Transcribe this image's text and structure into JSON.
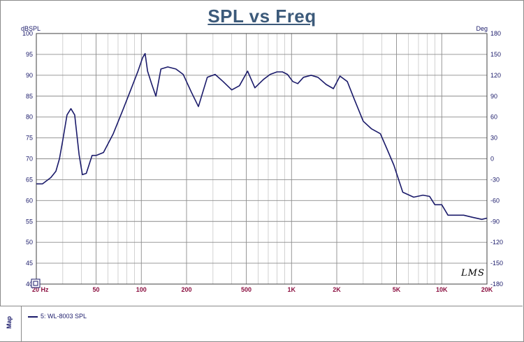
{
  "window": {
    "map_tab_label": "Map",
    "watermark": "LMS"
  },
  "chart_data": {
    "type": "line",
    "title": "SPL vs Freq",
    "ylabel": "dBSPL",
    "ylabel_right": "Deg",
    "xscale": "log",
    "xlim": [
      20,
      20000
    ],
    "ylim": [
      40,
      100
    ],
    "ylim_right": [
      -180,
      180
    ],
    "grid": true,
    "x_ticks": [
      {
        "value": 20,
        "label": "20 Hz"
      },
      {
        "value": 50,
        "label": "50"
      },
      {
        "value": 100,
        "label": "100"
      },
      {
        "value": 200,
        "label": "200"
      },
      {
        "value": 500,
        "label": "500"
      },
      {
        "value": 1000,
        "label": "1K"
      },
      {
        "value": 2000,
        "label": "2K"
      },
      {
        "value": 5000,
        "label": "5K"
      },
      {
        "value": 10000,
        "label": "10K"
      },
      {
        "value": 20000,
        "label": "20K"
      }
    ],
    "y_ticks": [
      100,
      95,
      90,
      85,
      80,
      75,
      70,
      65,
      60,
      55,
      50,
      45,
      40
    ],
    "y_ticks_right": [
      180,
      150,
      120,
      90,
      60,
      30,
      0,
      -30,
      -60,
      -90,
      -120,
      -150,
      -180
    ],
    "legend_position": "bottom-panel",
    "colors": {
      "series": "#1a1a6a",
      "grid": "#8c8c8c",
      "x_tick_text": "#8b1040",
      "axis_text": "#1a1a6a",
      "title": "#3c5a7a"
    },
    "series": [
      {
        "name": "5: WL-8003  SPL",
        "x": [
          20,
          22,
          25,
          27,
          28.5,
          30,
          32,
          34,
          36,
          38.5,
          40.5,
          43,
          47,
          50,
          56,
          65,
          75,
          85,
          95,
          102,
          106,
          110,
          117,
          125,
          135,
          150,
          170,
          190,
          215,
          240,
          275,
          310,
          350,
          400,
          450,
          510,
          570,
          650,
          720,
          800,
          870,
          940,
          1020,
          1100,
          1200,
          1350,
          1500,
          1700,
          1900,
          2100,
          2350,
          2600,
          3000,
          3400,
          3900,
          4300,
          4800,
          5500,
          6500,
          7500,
          8300,
          9000,
          10000,
          11000,
          13000,
          14000,
          16000,
          18500,
          20000
        ],
        "values": [
          64,
          64,
          65.5,
          67,
          70,
          74.5,
          80.5,
          82,
          80.5,
          71,
          66.2,
          66.5,
          70.8,
          70.8,
          71.5,
          76,
          81.5,
          86.5,
          91,
          94.2,
          95.2,
          91,
          88,
          85,
          91.5,
          92,
          91.5,
          90.2,
          86,
          82.5,
          89.5,
          90.2,
          88.5,
          86.5,
          87.5,
          91,
          87,
          89,
          90.2,
          90.8,
          90.8,
          90.2,
          88.5,
          88,
          89.5,
          90,
          89.5,
          87.8,
          86.8,
          89.8,
          88.5,
          84.5,
          79,
          77.2,
          76,
          72.5,
          68.5,
          62,
          60.8,
          61.3,
          61,
          59,
          59,
          56.5,
          56.5,
          56.5,
          56,
          55.5,
          55.8
        ]
      }
    ]
  }
}
